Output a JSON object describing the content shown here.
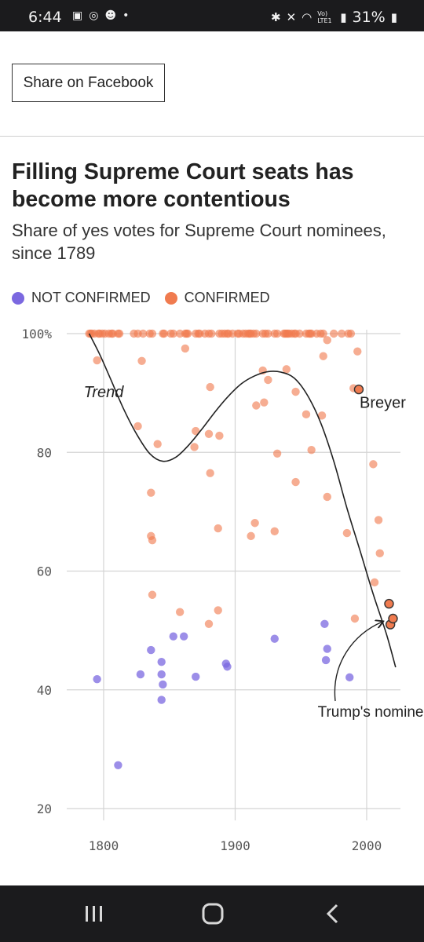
{
  "status_bar": {
    "time": "6:44",
    "battery": "31%",
    "network": "Vo) LTE1"
  },
  "share": {
    "label": "Share on Facebook"
  },
  "header": {
    "title": "Filling Supreme Court seats has become more contentious",
    "subtitle": "Share of yes votes for Supreme Court nominees, since 1789"
  },
  "legend": {
    "not_confirmed": "NOT CONFIRMED",
    "confirmed": "CONFIRMED"
  },
  "colors": {
    "not_confirmed": "#7b68e0",
    "confirmed": "#f07b4f",
    "highlight_stroke": "#333333",
    "gridline": "#d4d4d4",
    "trend": "#222222"
  },
  "chart_data": {
    "type": "scatter",
    "title": "Filling Supreme Court seats has become more contentious",
    "subtitle": "Share of yes votes for Supreme Court nominees, since 1789",
    "xlabel": "",
    "ylabel": "",
    "xlim": [
      1780,
      2030
    ],
    "ylim": [
      18,
      100
    ],
    "x_ticks": [
      1800,
      1900,
      2000
    ],
    "x_tick_labels": [
      "1800",
      "1900",
      "2000"
    ],
    "y_ticks": [
      20,
      40,
      60,
      80,
      100
    ],
    "y_tick_labels": [
      "20",
      "40",
      "60",
      "80",
      "100%"
    ],
    "grid": true,
    "legend_position": "top-left",
    "series": [
      {
        "name": "NOT CONFIRMED",
        "points": [
          [
            1795,
            41.8
          ],
          [
            1811,
            27.3
          ],
          [
            1828,
            42.6
          ],
          [
            1836,
            46.7
          ],
          [
            1844,
            44.7
          ],
          [
            1844,
            42.6
          ],
          [
            1845,
            40.9
          ],
          [
            1844,
            38.3
          ],
          [
            1853,
            49
          ],
          [
            1861,
            49
          ],
          [
            1870,
            42.2
          ],
          [
            1893,
            44.4
          ],
          [
            1894,
            43.9
          ],
          [
            1930,
            48.6
          ],
          [
            1968,
            51.1
          ],
          [
            1969,
            45
          ],
          [
            1970,
            46.9
          ],
          [
            1987,
            42.1
          ]
        ]
      },
      {
        "name": "CONFIRMED",
        "points": [
          [
            1789,
            100
          ],
          [
            1790,
            100
          ],
          [
            1791,
            100
          ],
          [
            1793,
            100
          ],
          [
            1796,
            100
          ],
          [
            1797,
            100
          ],
          [
            1799,
            100
          ],
          [
            1801,
            100
          ],
          [
            1804,
            100
          ],
          [
            1806,
            100
          ],
          [
            1807,
            100
          ],
          [
            1811,
            100
          ],
          [
            1812,
            100
          ],
          [
            1823,
            100
          ],
          [
            1826,
            100
          ],
          [
            1830,
            100
          ],
          [
            1835,
            100
          ],
          [
            1837,
            100
          ],
          [
            1845,
            100
          ],
          [
            1846,
            100
          ],
          [
            1851,
            100
          ],
          [
            1853,
            100
          ],
          [
            1858,
            100
          ],
          [
            1862,
            100
          ],
          [
            1863,
            100
          ],
          [
            1864,
            100
          ],
          [
            1870,
            100
          ],
          [
            1872,
            100
          ],
          [
            1873,
            100
          ],
          [
            1877,
            100
          ],
          [
            1880,
            100
          ],
          [
            1882,
            100
          ],
          [
            1888,
            100
          ],
          [
            1890,
            100
          ],
          [
            1892,
            100
          ],
          [
            1894,
            100
          ],
          [
            1895,
            100
          ],
          [
            1898,
            100
          ],
          [
            1902,
            100
          ],
          [
            1903,
            100
          ],
          [
            1906,
            100
          ],
          [
            1908,
            100
          ],
          [
            1910,
            100
          ],
          [
            1911,
            100
          ],
          [
            1912,
            100
          ],
          [
            1914,
            100
          ],
          [
            1916,
            100
          ],
          [
            1921,
            100
          ],
          [
            1923,
            100
          ],
          [
            1925,
            100
          ],
          [
            1930,
            100
          ],
          [
            1932,
            100
          ],
          [
            1937,
            100
          ],
          [
            1938,
            100
          ],
          [
            1939,
            100
          ],
          [
            1940,
            100
          ],
          [
            1941,
            100
          ],
          [
            1943,
            100
          ],
          [
            1945,
            100
          ],
          [
            1946,
            100
          ],
          [
            1949,
            100
          ],
          [
            1954,
            100
          ],
          [
            1956,
            100
          ],
          [
            1957,
            100
          ],
          [
            1958,
            100
          ],
          [
            1962,
            100
          ],
          [
            1965,
            100
          ],
          [
            1967,
            100
          ],
          [
            1975,
            100
          ],
          [
            1981,
            100
          ],
          [
            1986,
            100
          ],
          [
            1988,
            100
          ],
          [
            1795,
            95.5
          ],
          [
            1829,
            95.4
          ],
          [
            1826,
            84.4
          ],
          [
            1836,
            73.2
          ],
          [
            1836,
            65.9
          ],
          [
            1837,
            65.2
          ],
          [
            1837,
            56
          ],
          [
            1841,
            81.4
          ],
          [
            1858,
            53.1
          ],
          [
            1862,
            97.5
          ],
          [
            1870,
            83.6
          ],
          [
            1869,
            80.9
          ],
          [
            1880,
            83.1
          ],
          [
            1881,
            76.5
          ],
          [
            1881,
            91
          ],
          [
            1880,
            51.1
          ],
          [
            1888,
            82.8
          ],
          [
            1887,
            67.2
          ],
          [
            1887,
            53.4
          ],
          [
            1912,
            65.9
          ],
          [
            1915,
            68.1
          ],
          [
            1916,
            87.9
          ],
          [
            1922,
            88.4
          ],
          [
            1921,
            93.8
          ],
          [
            1925,
            92.2
          ],
          [
            1930,
            66.7
          ],
          [
            1932,
            79.8
          ],
          [
            1939,
            94
          ],
          [
            1946,
            90.2
          ],
          [
            1946,
            75
          ],
          [
            1954,
            86.4
          ],
          [
            1958,
            80.4
          ],
          [
            1966,
            86.2
          ],
          [
            1967,
            96.2
          ],
          [
            1970,
            72.5
          ],
          [
            1970,
            98.9
          ],
          [
            1985,
            66.4
          ],
          [
            1990,
            90.8
          ],
          [
            1991,
            52
          ],
          [
            1993,
            97
          ],
          [
            2005,
            78
          ],
          [
            2006,
            58.1
          ],
          [
            2009,
            68.6
          ],
          [
            2010,
            63
          ]
        ]
      },
      {
        "name": "Trump's nominees",
        "points": [
          [
            2017,
            54.5
          ],
          [
            2018,
            51
          ],
          [
            2020,
            52
          ]
        ]
      },
      {
        "name": "Breyer",
        "points": [
          [
            1994,
            90.6
          ]
        ]
      }
    ],
    "trend": {
      "name": "Trend",
      "points": [
        [
          1789,
          100
        ],
        [
          1797,
          96.5
        ],
        [
          1805,
          92.5
        ],
        [
          1815,
          87.4
        ],
        [
          1825,
          83.1
        ],
        [
          1835,
          79.8
        ],
        [
          1845,
          78.5
        ],
        [
          1855,
          79.2
        ],
        [
          1865,
          81.3
        ],
        [
          1875,
          84
        ],
        [
          1885,
          86.9
        ],
        [
          1895,
          89.5
        ],
        [
          1905,
          91.6
        ],
        [
          1915,
          92.9
        ],
        [
          1925,
          93.6
        ],
        [
          1935,
          93.5
        ],
        [
          1945,
          92.5
        ],
        [
          1955,
          89.6
        ],
        [
          1965,
          85
        ],
        [
          1975,
          78.5
        ],
        [
          1985,
          70.6
        ],
        [
          1995,
          63.4
        ],
        [
          2005,
          56.1
        ],
        [
          2015,
          49.4
        ],
        [
          2022,
          43.8
        ]
      ]
    },
    "annotations": [
      {
        "text": "Trend",
        "x": 1800,
        "y": 89.3,
        "style": "italic"
      },
      {
        "text": "Breyer",
        "x": 1994,
        "y": 87.5
      },
      {
        "text": "Trump's nominees",
        "x": 2009,
        "y": 35.5
      }
    ]
  }
}
